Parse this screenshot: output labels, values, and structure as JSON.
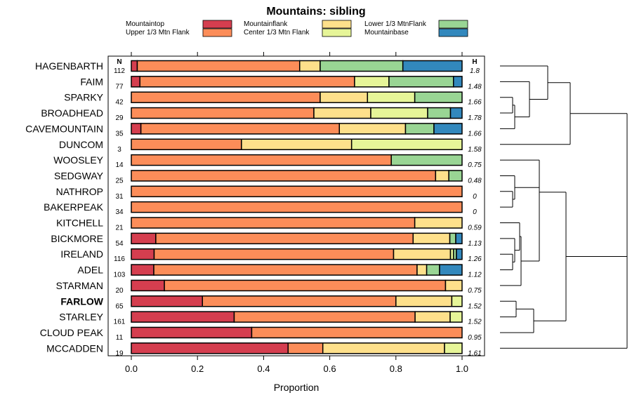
{
  "chart_data": {
    "type": "bar",
    "stacked": true,
    "orientation": "horizontal",
    "title": "Mountains: sibling",
    "xlabel": "Proportion",
    "xlim": [
      0,
      1
    ],
    "x_ticks": [
      "0.0",
      "0.2",
      "0.4",
      "0.6",
      "0.8",
      "1.0"
    ],
    "n_header": "N",
    "h_header": "H",
    "highlight": "FARLOW",
    "series": [
      {
        "name": "Mountaintop",
        "color": "#d53e4f"
      },
      {
        "name": "Upper 1/3 Mtn Flank",
        "color": "#fc8d59"
      },
      {
        "name": "Mountainflank",
        "color": "#fee08b"
      },
      {
        "name": "Center 1/3 Mtn Flank",
        "color": "#e6f598"
      },
      {
        "name": "Lower 1/3 MtnFlank",
        "color": "#99d594"
      },
      {
        "name": "Mountainbase",
        "color": "#3288bd"
      }
    ],
    "rows": [
      {
        "label": "HAGENBARTH",
        "n": "112",
        "h": "1.8",
        "values": [
          0.018,
          0.491,
          0.062,
          0.0,
          0.25,
          0.179
        ]
      },
      {
        "label": "FAIM",
        "n": "77",
        "h": "1.48",
        "values": [
          0.026,
          0.649,
          0.0,
          0.104,
          0.195,
          0.026
        ]
      },
      {
        "label": "SPARKY",
        "n": "42",
        "h": "1.66",
        "values": [
          0.0,
          0.571,
          0.143,
          0.143,
          0.143,
          0.0
        ]
      },
      {
        "label": "BROADHEAD",
        "n": "29",
        "h": "1.78",
        "values": [
          0.0,
          0.552,
          0.172,
          0.172,
          0.069,
          0.035
        ]
      },
      {
        "label": "CAVEMOUNTAIN",
        "n": "35",
        "h": "1.66",
        "values": [
          0.029,
          0.6,
          0.2,
          0.0,
          0.086,
          0.085
        ]
      },
      {
        "label": "DUNCOM",
        "n": "3",
        "h": "1.58",
        "values": [
          0.0,
          0.333,
          0.333,
          0.334,
          0.0,
          0.0
        ]
      },
      {
        "label": "WOOSLEY",
        "n": "14",
        "h": "0.75",
        "values": [
          0.0,
          0.786,
          0.0,
          0.0,
          0.214,
          0.0
        ]
      },
      {
        "label": "SEDGWAY",
        "n": "25",
        "h": "0.48",
        "values": [
          0.0,
          0.92,
          0.04,
          0.0,
          0.04,
          0.0
        ]
      },
      {
        "label": "NATHROP",
        "n": "31",
        "h": "0",
        "values": [
          0.0,
          1.0,
          0.0,
          0.0,
          0.0,
          0.0
        ]
      },
      {
        "label": "BAKERPEAK",
        "n": "34",
        "h": "0",
        "values": [
          0.0,
          1.0,
          0.0,
          0.0,
          0.0,
          0.0
        ]
      },
      {
        "label": "KITCHELL",
        "n": "21",
        "h": "0.59",
        "values": [
          0.0,
          0.857,
          0.143,
          0.0,
          0.0,
          0.0
        ]
      },
      {
        "label": "BICKMORE",
        "n": "54",
        "h": "1.13",
        "values": [
          0.074,
          0.778,
          0.111,
          0.0,
          0.018,
          0.019
        ]
      },
      {
        "label": "IRELAND",
        "n": "116",
        "h": "1.26",
        "values": [
          0.069,
          0.724,
          0.172,
          0.009,
          0.009,
          0.017
        ]
      },
      {
        "label": "ADEL",
        "n": "103",
        "h": "1.12",
        "values": [
          0.068,
          0.796,
          0.029,
          0.0,
          0.039,
          0.068
        ]
      },
      {
        "label": "STARMAN",
        "n": "20",
        "h": "0.75",
        "values": [
          0.1,
          0.85,
          0.05,
          0.0,
          0.0,
          0.0
        ]
      },
      {
        "label": "FARLOW",
        "n": "65",
        "h": "1.52",
        "values": [
          0.215,
          0.585,
          0.169,
          0.031,
          0.0,
          0.0
        ]
      },
      {
        "label": "STARLEY",
        "n": "161",
        "h": "1.52",
        "values": [
          0.311,
          0.547,
          0.106,
          0.036,
          0.0,
          0.0
        ]
      },
      {
        "label": "CLOUD PEAK",
        "n": "11",
        "h": "0.95",
        "values": [
          0.364,
          0.636,
          0.0,
          0.0,
          0.0,
          0.0
        ]
      },
      {
        "label": "MCCADDEN",
        "n": "19",
        "h": "1.61",
        "values": [
          0.474,
          0.105,
          0.368,
          0.053,
          0.0,
          0.0
        ]
      }
    ]
  }
}
